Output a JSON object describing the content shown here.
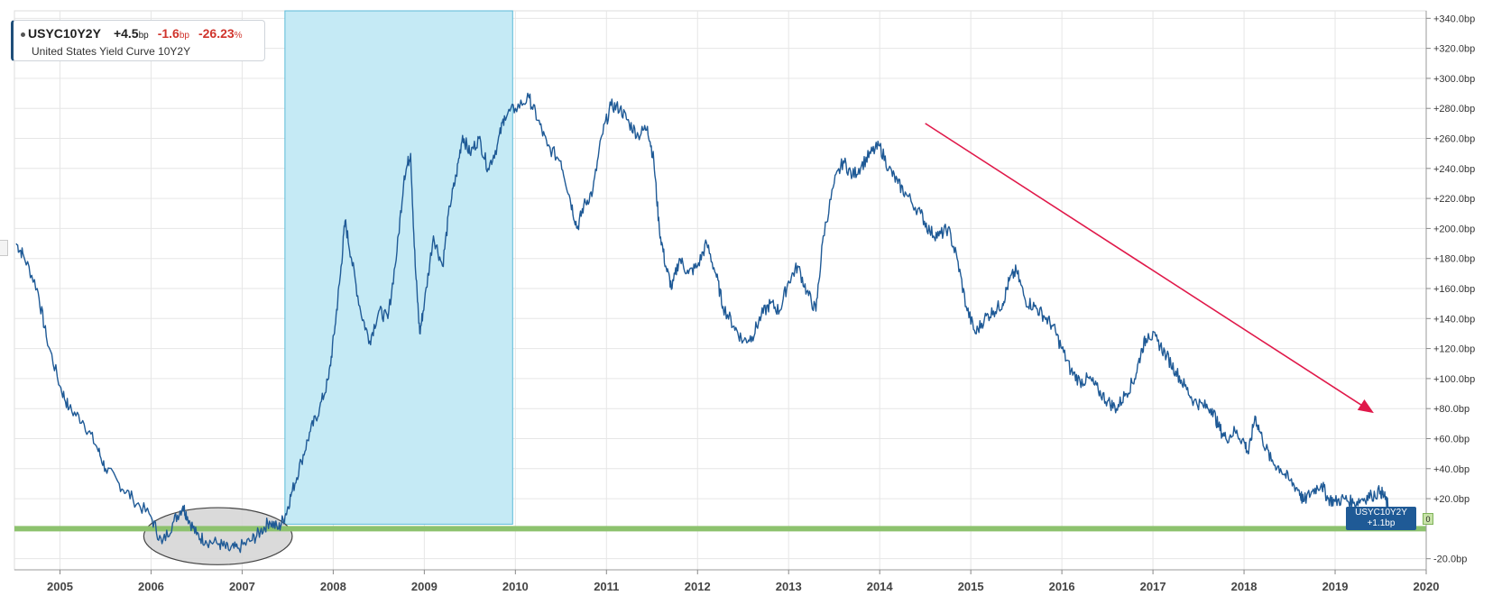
{
  "legend": {
    "symbol": "USYC10Y2Y",
    "change_value": "+4.5",
    "change_unit": "bp",
    "change2_value": "-1.6",
    "change2_unit": "bp",
    "change_pct_value": "-26.23",
    "change_pct_unit": "%",
    "description": "United States Yield Curve 10Y2Y"
  },
  "price_tag": {
    "symbol": "USYC10Y2Y",
    "value": "+1.1bp"
  },
  "zero_tag": "0",
  "colors": {
    "series": "#1f5a96",
    "shade": "#c5eaf5",
    "shade_border": "#5bbad8",
    "zero_line": "#8dc26e",
    "trend_arrow": "#e0194a",
    "ellipse_fill": "#d3d3d3",
    "grid": "#e6e6e6"
  },
  "chart_data": {
    "type": "line",
    "title": "",
    "xlabel": "",
    "ylabel": "",
    "xlim": [
      2004.5,
      2020.0
    ],
    "ylim": [
      -25,
      345
    ],
    "y_ticks": [
      {
        "v": 340,
        "label": "+340.0bp"
      },
      {
        "v": 320,
        "label": "+320.0bp"
      },
      {
        "v": 300,
        "label": "+300.0bp"
      },
      {
        "v": 280,
        "label": "+280.0bp"
      },
      {
        "v": 260,
        "label": "+260.0bp"
      },
      {
        "v": 240,
        "label": "+240.0bp"
      },
      {
        "v": 220,
        "label": "+220.0bp"
      },
      {
        "v": 200,
        "label": "+200.0bp"
      },
      {
        "v": 180,
        "label": "+180.0bp"
      },
      {
        "v": 160,
        "label": "+160.0bp"
      },
      {
        "v": 140,
        "label": "+140.0bp"
      },
      {
        "v": 120,
        "label": "+120.0bp"
      },
      {
        "v": 100,
        "label": "+100.0bp"
      },
      {
        "v": 80,
        "label": "+80.0bp"
      },
      {
        "v": 60,
        "label": "+60.0bp"
      },
      {
        "v": 40,
        "label": "+40.0bp"
      },
      {
        "v": 20,
        "label": "+20.0bp"
      },
      {
        "v": -20,
        "label": "-20.0bp"
      }
    ],
    "x_ticks": [
      {
        "v": 2005,
        "label": "2005"
      },
      {
        "v": 2006,
        "label": "2006"
      },
      {
        "v": 2007,
        "label": "2007"
      },
      {
        "v": 2008,
        "label": "2008"
      },
      {
        "v": 2009,
        "label": "2009"
      },
      {
        "v": 2010,
        "label": "2010"
      },
      {
        "v": 2011,
        "label": "2011"
      },
      {
        "v": 2012,
        "label": "2012"
      },
      {
        "v": 2013,
        "label": "2013"
      },
      {
        "v": 2014,
        "label": "2014"
      },
      {
        "v": 2015,
        "label": "2015"
      },
      {
        "v": 2016,
        "label": "2016"
      },
      {
        "v": 2017,
        "label": "2017"
      },
      {
        "v": 2018,
        "label": "2018"
      },
      {
        "v": 2019,
        "label": "2019"
      },
      {
        "v": 2020,
        "label": "2020"
      }
    ],
    "grid": true,
    "series": [
      {
        "name": "USYC10Y2Y",
        "points": [
          [
            2004.52,
            190
          ],
          [
            2004.6,
            182
          ],
          [
            2004.75,
            160
          ],
          [
            2004.85,
            128
          ],
          [
            2005.0,
            95
          ],
          [
            2005.1,
            80
          ],
          [
            2005.25,
            72
          ],
          [
            2005.4,
            55
          ],
          [
            2005.5,
            40
          ],
          [
            2005.65,
            30
          ],
          [
            2005.8,
            20
          ],
          [
            2006.0,
            8
          ],
          [
            2006.12,
            -10
          ],
          [
            2006.25,
            5
          ],
          [
            2006.35,
            15
          ],
          [
            2006.4,
            8
          ],
          [
            2006.5,
            -4
          ],
          [
            2006.6,
            -8
          ],
          [
            2006.75,
            -10
          ],
          [
            2006.85,
            -14
          ],
          [
            2006.95,
            -13
          ],
          [
            2007.1,
            -8
          ],
          [
            2007.2,
            -2
          ],
          [
            2007.3,
            5
          ],
          [
            2007.4,
            0
          ],
          [
            2007.48,
            10
          ],
          [
            2007.55,
            25
          ],
          [
            2007.65,
            45
          ],
          [
            2007.75,
            65
          ],
          [
            2007.85,
            80
          ],
          [
            2007.95,
            100
          ],
          [
            2008.02,
            135
          ],
          [
            2008.08,
            170
          ],
          [
            2008.13,
            205
          ],
          [
            2008.2,
            180
          ],
          [
            2008.3,
            145
          ],
          [
            2008.4,
            125
          ],
          [
            2008.5,
            145
          ],
          [
            2008.6,
            140
          ],
          [
            2008.7,
            185
          ],
          [
            2008.78,
            235
          ],
          [
            2008.85,
            250
          ],
          [
            2008.9,
            175
          ],
          [
            2008.95,
            130
          ],
          [
            2009.0,
            150
          ],
          [
            2009.1,
            195
          ],
          [
            2009.2,
            175
          ],
          [
            2009.28,
            215
          ],
          [
            2009.35,
            235
          ],
          [
            2009.42,
            262
          ],
          [
            2009.5,
            250
          ],
          [
            2009.6,
            260
          ],
          [
            2009.7,
            240
          ],
          [
            2009.8,
            255
          ],
          [
            2009.88,
            275
          ],
          [
            2010.0,
            280
          ],
          [
            2010.15,
            287
          ],
          [
            2010.25,
            272
          ],
          [
            2010.35,
            255
          ],
          [
            2010.5,
            245
          ],
          [
            2010.6,
            220
          ],
          [
            2010.68,
            200
          ],
          [
            2010.75,
            215
          ],
          [
            2010.85,
            225
          ],
          [
            2010.95,
            262
          ],
          [
            2011.05,
            282
          ],
          [
            2011.15,
            280
          ],
          [
            2011.25,
            270
          ],
          [
            2011.35,
            262
          ],
          [
            2011.45,
            268
          ],
          [
            2011.52,
            245
          ],
          [
            2011.58,
            200
          ],
          [
            2011.65,
            175
          ],
          [
            2011.72,
            160
          ],
          [
            2011.8,
            180
          ],
          [
            2011.9,
            170
          ],
          [
            2012.0,
            175
          ],
          [
            2012.1,
            190
          ],
          [
            2012.2,
            170
          ],
          [
            2012.28,
            148
          ],
          [
            2012.4,
            135
          ],
          [
            2012.5,
            125
          ],
          [
            2012.6,
            128
          ],
          [
            2012.7,
            142
          ],
          [
            2012.8,
            150
          ],
          [
            2012.9,
            145
          ],
          [
            2013.0,
            165
          ],
          [
            2013.1,
            175
          ],
          [
            2013.2,
            158
          ],
          [
            2013.3,
            145
          ],
          [
            2013.38,
            195
          ],
          [
            2013.5,
            230
          ],
          [
            2013.6,
            245
          ],
          [
            2013.7,
            235
          ],
          [
            2013.8,
            242
          ],
          [
            2013.9,
            250
          ],
          [
            2014.0,
            255
          ],
          [
            2014.1,
            240
          ],
          [
            2014.2,
            230
          ],
          [
            2014.3,
            222
          ],
          [
            2014.45,
            210
          ],
          [
            2014.55,
            198
          ],
          [
            2014.65,
            195
          ],
          [
            2014.75,
            200
          ],
          [
            2014.85,
            180
          ],
          [
            2014.95,
            148
          ],
          [
            2015.05,
            130
          ],
          [
            2015.15,
            140
          ],
          [
            2015.25,
            145
          ],
          [
            2015.35,
            150
          ],
          [
            2015.42,
            165
          ],
          [
            2015.5,
            172
          ],
          [
            2015.6,
            152
          ],
          [
            2015.7,
            148
          ],
          [
            2015.8,
            142
          ],
          [
            2015.9,
            135
          ],
          [
            2016.0,
            120
          ],
          [
            2016.1,
            105
          ],
          [
            2016.2,
            98
          ],
          [
            2016.3,
            100
          ],
          [
            2016.4,
            92
          ],
          [
            2016.5,
            85
          ],
          [
            2016.6,
            80
          ],
          [
            2016.7,
            90
          ],
          [
            2016.8,
            100
          ],
          [
            2016.88,
            120
          ],
          [
            2016.95,
            130
          ],
          [
            2017.05,
            125
          ],
          [
            2017.15,
            115
          ],
          [
            2017.25,
            105
          ],
          [
            2017.35,
            95
          ],
          [
            2017.45,
            85
          ],
          [
            2017.55,
            82
          ],
          [
            2017.65,
            80
          ],
          [
            2017.72,
            68
          ],
          [
            2017.8,
            60
          ],
          [
            2017.9,
            65
          ],
          [
            2018.0,
            58
          ],
          [
            2018.05,
            50
          ],
          [
            2018.12,
            75
          ],
          [
            2018.2,
            60
          ],
          [
            2018.3,
            45
          ],
          [
            2018.4,
            40
          ],
          [
            2018.5,
            32
          ],
          [
            2018.6,
            26
          ],
          [
            2018.65,
            18
          ],
          [
            2018.75,
            25
          ],
          [
            2018.85,
            30
          ],
          [
            2018.92,
            20
          ],
          [
            2019.0,
            18
          ],
          [
            2019.1,
            20
          ],
          [
            2019.2,
            17
          ],
          [
            2019.3,
            20
          ],
          [
            2019.4,
            22
          ],
          [
            2019.5,
            25
          ],
          [
            2019.55,
            20
          ],
          [
            2019.6,
            12
          ],
          [
            2019.65,
            3
          ],
          [
            2019.66,
            1.1
          ]
        ]
      }
    ],
    "annotations": [
      {
        "type": "shaded-region",
        "x_from": 2007.47,
        "x_to": 2009.97,
        "y_from": 3,
        "y_to": 345
      },
      {
        "type": "horizontal-line",
        "y": 0
      },
      {
        "type": "ellipse",
        "x_from": 2005.92,
        "x_to": 2007.55,
        "y_from": -24,
        "y_to": 14
      },
      {
        "type": "arrow",
        "x_from": 2014.5,
        "y_from": 270,
        "x_to": 2019.4,
        "y_to": 78
      }
    ]
  }
}
